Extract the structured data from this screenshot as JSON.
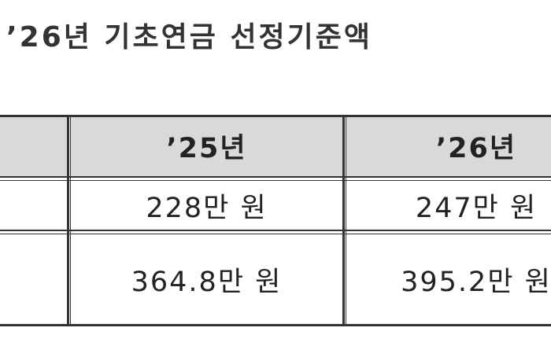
{
  "title": "’26년 기초연금 선정기준액",
  "table": {
    "headers": [
      "’25년",
      "’26년"
    ],
    "rows": [
      [
        "228만 원",
        "247만 원"
      ],
      [
        "364.8만 원",
        "395.2만 원"
      ]
    ]
  }
}
